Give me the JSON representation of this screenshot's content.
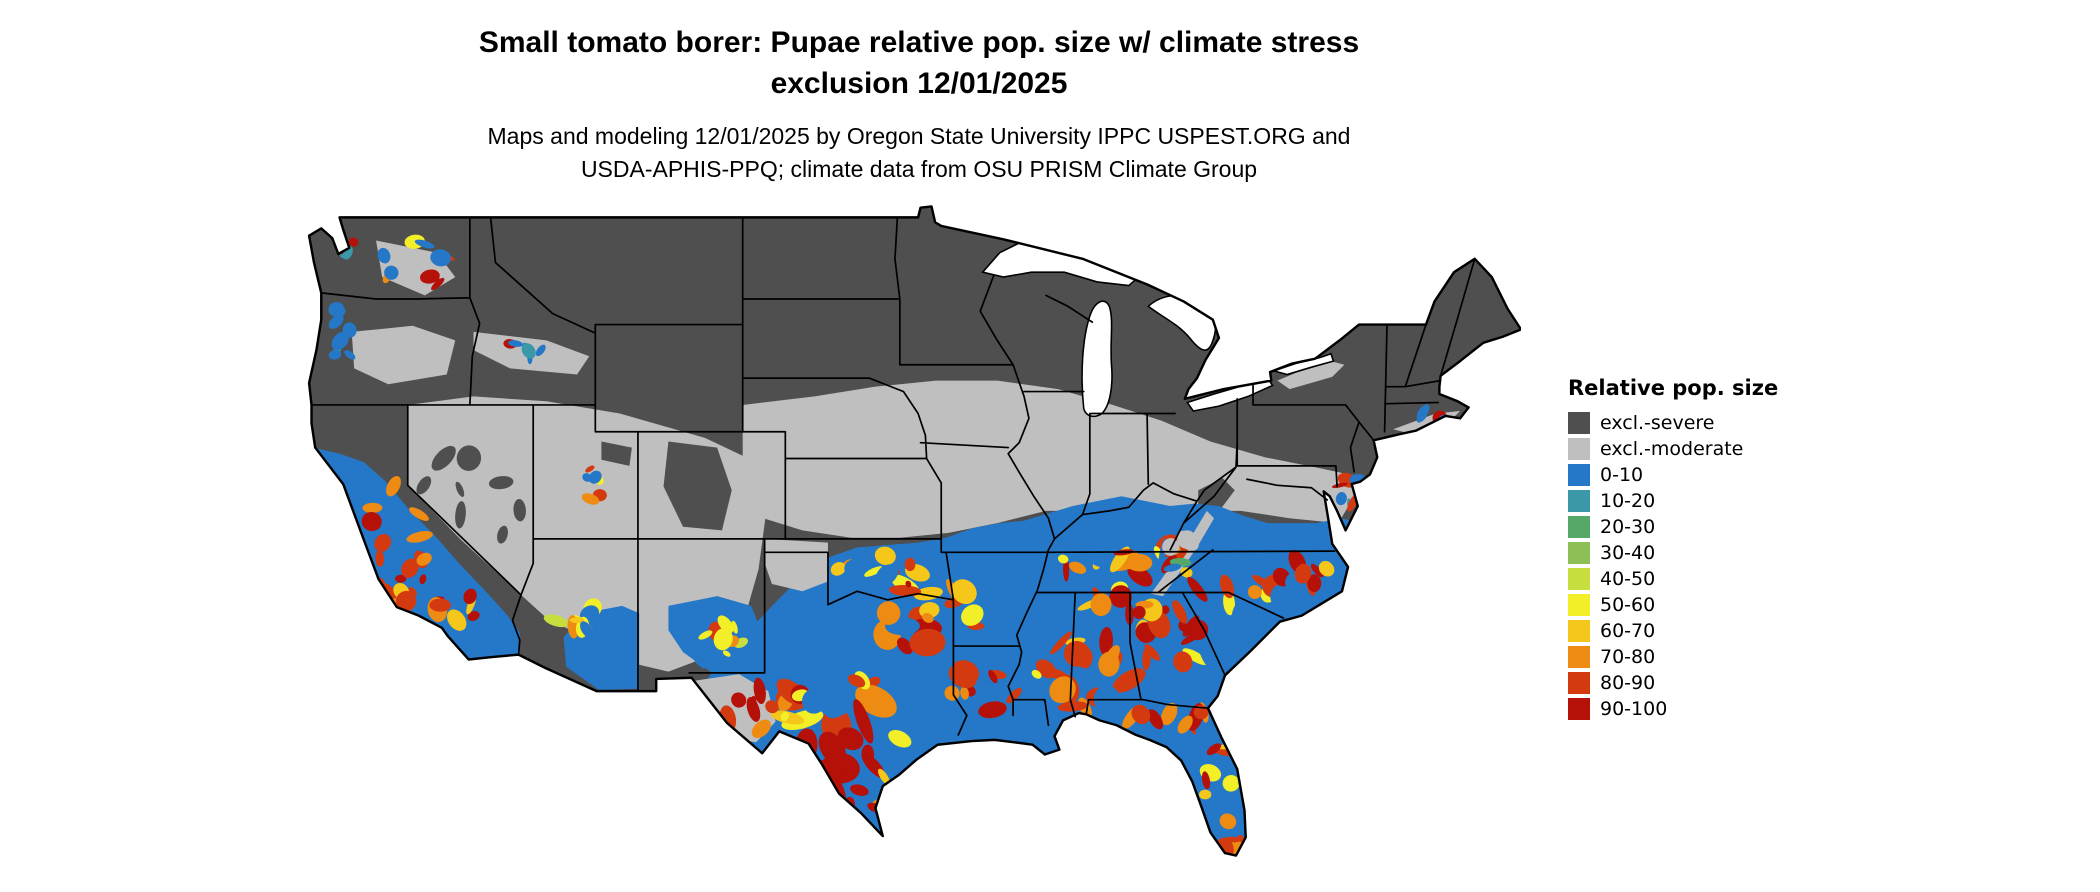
{
  "header": {
    "title_line1": "Small tomato borer: Pupae relative pop. size w/ climate stress",
    "title_line2": "exclusion 12/01/2025",
    "subtitle_line1": "Maps and modeling 12/01/2025 by Oregon State University IPPC USPEST.ORG and",
    "subtitle_line2": "USDA-APHIS-PPQ; climate data from OSU PRISM Climate Group"
  },
  "legend": {
    "title": "Relative pop. size",
    "items": [
      {
        "key": "excl_severe",
        "label": "excl.-severe",
        "color": "#4f4f4f"
      },
      {
        "key": "excl_moderate",
        "label": "excl.-moderate",
        "color": "#bfbfbf"
      },
      {
        "key": "c0_10",
        "label": "0-10",
        "color": "#2577c8"
      },
      {
        "key": "c10_20",
        "label": "10-20",
        "color": "#3a98a8"
      },
      {
        "key": "c20_30",
        "label": "20-30",
        "color": "#55a868"
      },
      {
        "key": "c30_40",
        "label": "30-40",
        "color": "#8cbf56"
      },
      {
        "key": "c40_50",
        "label": "40-50",
        "color": "#c8dd3e"
      },
      {
        "key": "c50_60",
        "label": "50-60",
        "color": "#f2ee27"
      },
      {
        "key": "c60_70",
        "label": "60-70",
        "color": "#f5c71a"
      },
      {
        "key": "c70_80",
        "label": "70-80",
        "color": "#ee8b12"
      },
      {
        "key": "c80_90",
        "label": "80-90",
        "color": "#d43a10"
      },
      {
        "key": "c90_100",
        "label": "90-100",
        "color": "#b51109"
      }
    ]
  },
  "map": {
    "water_color": "#ffffff",
    "border_color": "#000000"
  }
}
